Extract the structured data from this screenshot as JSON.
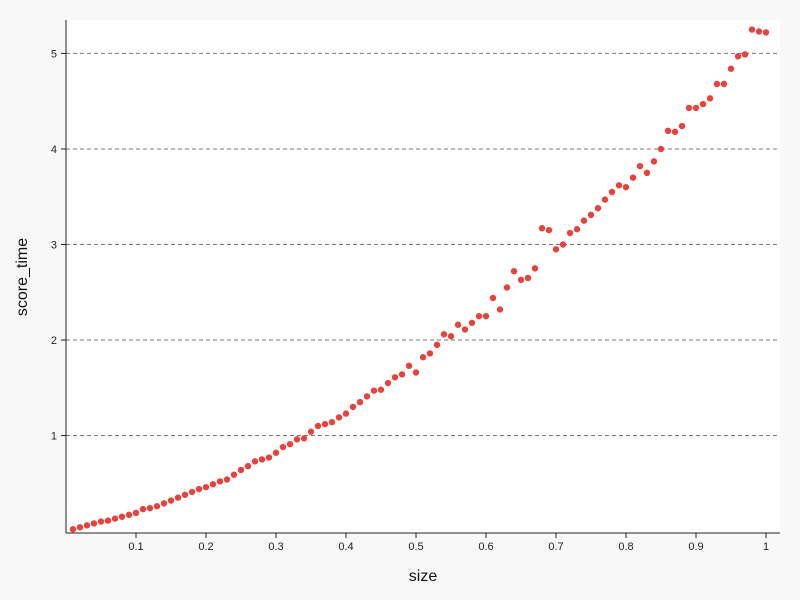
{
  "chart_data": {
    "type": "scatter",
    "title": "",
    "xlabel": "size",
    "ylabel": "score_time",
    "xlim": [
      0,
      1.02
    ],
    "ylim": [
      -0.02,
      5.35
    ],
    "grid": "horizontal dashed",
    "x_ticks": [
      0.1,
      0.2,
      0.3,
      0.4,
      0.5,
      0.6,
      0.7,
      0.8,
      0.9,
      1
    ],
    "x_tick_labels": [
      "0.1",
      "0.2",
      "0.3",
      "0.4",
      "0.5",
      "0.6",
      "0.7",
      "0.8",
      "0.9",
      "1"
    ],
    "y_ticks": [
      1,
      2,
      3,
      4,
      5
    ],
    "y_tick_labels": [
      "1",
      "2",
      "3",
      "4",
      "5"
    ],
    "marker_color": "#e8423c",
    "grid_color": "#777777",
    "series": [
      {
        "name": "score_time",
        "x": [
          0.01,
          0.02,
          0.03,
          0.04,
          0.05,
          0.06,
          0.07,
          0.08,
          0.09,
          0.1,
          0.11,
          0.12,
          0.13,
          0.14,
          0.15,
          0.16,
          0.17,
          0.18,
          0.19,
          0.2,
          0.21,
          0.22,
          0.23,
          0.24,
          0.25,
          0.26,
          0.27,
          0.28,
          0.29,
          0.3,
          0.31,
          0.32,
          0.33,
          0.34,
          0.35,
          0.36,
          0.37,
          0.38,
          0.39,
          0.4,
          0.41,
          0.42,
          0.43,
          0.44,
          0.45,
          0.46,
          0.47,
          0.48,
          0.49,
          0.5,
          0.51,
          0.52,
          0.53,
          0.54,
          0.55,
          0.56,
          0.57,
          0.58,
          0.59,
          0.6,
          0.61,
          0.62,
          0.63,
          0.64,
          0.65,
          0.66,
          0.67,
          0.68,
          0.69,
          0.7,
          0.71,
          0.72,
          0.73,
          0.74,
          0.75,
          0.76,
          0.77,
          0.78,
          0.79,
          0.8,
          0.81,
          0.82,
          0.83,
          0.84,
          0.85,
          0.86,
          0.87,
          0.88,
          0.89,
          0.9,
          0.91,
          0.92,
          0.93,
          0.94,
          0.95,
          0.96,
          0.97,
          0.98,
          0.99,
          1.0
        ],
        "y": [
          0.02,
          0.04,
          0.06,
          0.08,
          0.1,
          0.11,
          0.13,
          0.15,
          0.17,
          0.19,
          0.23,
          0.24,
          0.26,
          0.29,
          0.32,
          0.35,
          0.38,
          0.41,
          0.44,
          0.46,
          0.49,
          0.52,
          0.54,
          0.59,
          0.64,
          0.68,
          0.73,
          0.75,
          0.77,
          0.82,
          0.88,
          0.91,
          0.96,
          0.97,
          1.04,
          1.1,
          1.12,
          1.14,
          1.19,
          1.23,
          1.3,
          1.35,
          1.41,
          1.47,
          1.48,
          1.55,
          1.61,
          1.64,
          1.73,
          1.66,
          1.82,
          1.86,
          1.95,
          2.06,
          2.04,
          2.16,
          2.11,
          2.18,
          2.25,
          2.25,
          2.44,
          2.32,
          2.55,
          2.72,
          2.63,
          2.65,
          2.75,
          3.17,
          3.15,
          2.95,
          3.0,
          3.12,
          3.16,
          3.25,
          3.31,
          3.38,
          3.47,
          3.55,
          3.62,
          3.6,
          3.7,
          3.82,
          3.75,
          3.87,
          4.0,
          4.19,
          4.18,
          4.24,
          4.43,
          4.43,
          4.47,
          4.53,
          4.68,
          4.68,
          4.84,
          4.97,
          4.99,
          5.25,
          5.23,
          5.22
        ]
      }
    ]
  }
}
